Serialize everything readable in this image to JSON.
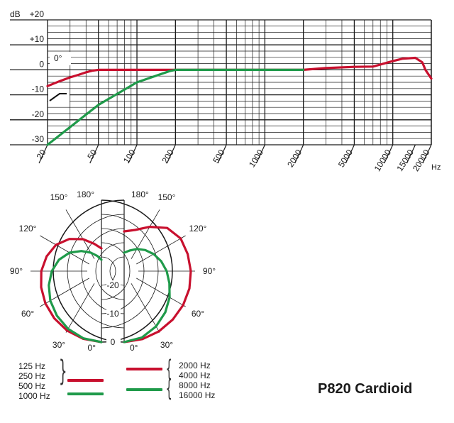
{
  "colors": {
    "red": "#c8102e",
    "green": "#1f9a4a",
    "grid": "#1a1a1a"
  },
  "chart_data": [
    {
      "type": "line",
      "title": "",
      "ylabel": "dB",
      "xlabel": "Hz",
      "x_scale": "log",
      "xlim": [
        20,
        20000
      ],
      "ylim": [
        -30,
        20
      ],
      "y_ticks": [
        "+20",
        "+10",
        "0",
        "-10",
        "-20",
        "-30"
      ],
      "y_tick_values": [
        20,
        10,
        0,
        -10,
        -20,
        -30
      ],
      "x_ticks": [
        "20",
        "50",
        "100",
        "200",
        "500",
        "1000",
        "2000",
        "5000",
        "10000",
        "15000",
        "20000"
      ],
      "x_tick_values": [
        20,
        50,
        100,
        200,
        500,
        1000,
        2000,
        5000,
        10000,
        15000,
        20000
      ],
      "annotation": "0°",
      "grid": true,
      "series": [
        {
          "color": "red",
          "x": [
            20,
            25,
            30,
            35,
            40,
            45,
            50,
            60,
            100,
            200,
            500,
            1000,
            2000,
            3000,
            5000,
            7000,
            10000,
            12000,
            15000,
            17000,
            18000,
            20000
          ],
          "y": [
            -6.5,
            -4.5,
            -3,
            -2,
            -1,
            -0.3,
            0,
            0,
            0,
            0,
            0,
            0,
            0,
            0.7,
            1.2,
            1.3,
            3.5,
            4.5,
            4.8,
            3,
            0,
            -3.5
          ]
        },
        {
          "color": "green",
          "x": [
            20,
            50,
            100,
            180,
            200,
            250,
            500,
            1000,
            2000
          ],
          "y": [
            -30,
            -14,
            -5,
            -0.5,
            0,
            0,
            0,
            0,
            0
          ]
        }
      ]
    },
    {
      "type": "polar",
      "angle_labels_left": [
        "180°",
        "150°",
        "120°",
        "90°",
        "60°",
        "30°",
        "0°"
      ],
      "angle_labels_right": [
        "180°",
        "150°",
        "120°",
        "90°",
        "60°",
        "30°",
        "0°"
      ],
      "radial_labels": [
        "-20",
        "-10",
        "0"
      ],
      "series_left": [
        {
          "color": "red",
          "angles": [
            0,
            15,
            30,
            45,
            60,
            75,
            90,
            105,
            120,
            135,
            150,
            165,
            180
          ],
          "values": [
            0,
            -0.3,
            -0.8,
            -1.5,
            -2.2,
            -3,
            -3.8,
            -5,
            -6.5,
            -9,
            -12,
            -15,
            -17
          ]
        },
        {
          "color": "green",
          "angles": [
            0,
            15,
            30,
            45,
            60,
            75,
            90,
            105,
            120,
            135,
            150,
            165,
            180
          ],
          "values": [
            0,
            -0.5,
            -1.5,
            -2.8,
            -4.2,
            -5.8,
            -7.5,
            -9.5,
            -12,
            -15,
            -17.5,
            -19.5,
            -21
          ]
        }
      ],
      "series_right": [
        {
          "color": "red",
          "angles": [
            0,
            15,
            30,
            45,
            60,
            75,
            90,
            105,
            120,
            135,
            150,
            165,
            180
          ],
          "values": [
            0,
            -0.2,
            -0.5,
            -0.8,
            -1,
            -1.2,
            -1.5,
            -1.8,
            -2,
            -3.5,
            -7,
            -10,
            -11
          ]
        },
        {
          "color": "green",
          "angles": [
            0,
            15,
            30,
            45,
            60,
            75,
            90,
            105,
            120,
            135,
            150,
            165,
            180
          ],
          "values": [
            0,
            -0.8,
            -2.5,
            -4.5,
            -6.5,
            -8.5,
            -10,
            -11.5,
            -13,
            -14.5,
            -16,
            -17.5,
            -18.5
          ]
        }
      ]
    }
  ],
  "legend": {
    "red_left": [
      "125 Hz",
      "250 Hz",
      "500 Hz"
    ],
    "green_left": [
      "1000 Hz"
    ],
    "red_right": [
      "2000 Hz",
      "4000 Hz"
    ],
    "green_right": [
      "8000 Hz",
      "16000 Hz"
    ]
  },
  "title": "P820 Cardioid"
}
